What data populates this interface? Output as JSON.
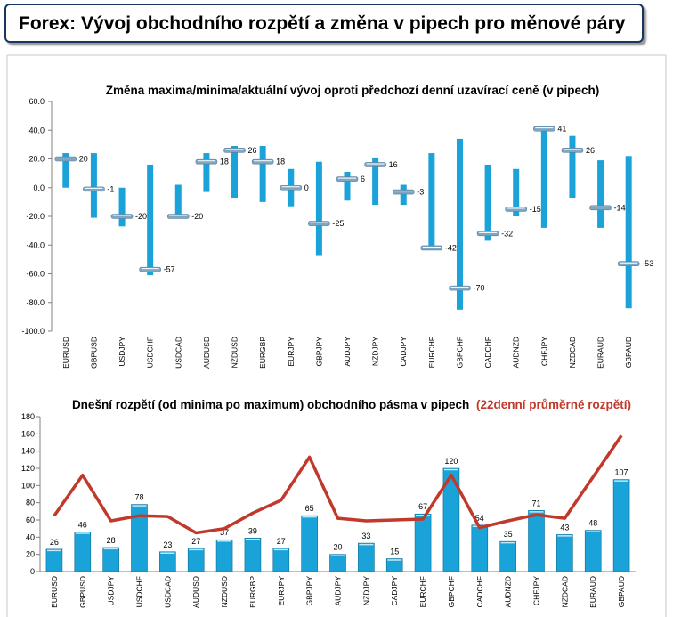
{
  "page_title": "Forex: Vývoj obchodního rozpětí a změna v pipech pro měnové páry",
  "chart_data": [
    {
      "type": "range",
      "title": "Změna maxima/minima/aktuální vývoj oproti předchozí denní uzavírací ceně (v pipech)",
      "ylim": [
        -100,
        60
      ],
      "yticks": [
        "60.0",
        "40.0",
        "20.0",
        "0.0",
        "-20.0",
        "-40.0",
        "-60.0",
        "-80.0",
        "-100.0"
      ],
      "grid": false,
      "colors": {
        "bar": "#1aa3d9",
        "marker": "#7fa6c2"
      },
      "categories": [
        "EURUSD",
        "GBPUSD",
        "USDJPY",
        "USDCHF",
        "USDCAD",
        "AUDUSD",
        "NZDUSD",
        "EURGBP",
        "EURJPY",
        "GBPJPY",
        "AUDJPY",
        "NZDJPY",
        "CADJPY",
        "EURCHF",
        "GBPCHF",
        "CADCHF",
        "AUDNZD",
        "CHFJPY",
        "NZDCAD",
        "EURAUD",
        "GBPAUD"
      ],
      "high": [
        24,
        24,
        0,
        16,
        2,
        24,
        29,
        29,
        13,
        18,
        11,
        21,
        2,
        24,
        34,
        16,
        13,
        42,
        36,
        19,
        22
      ],
      "low": [
        0,
        -21,
        -27,
        -61,
        -21,
        -3,
        -7,
        -10,
        -13,
        -47,
        -9,
        -12,
        -12,
        -43,
        -85,
        -37,
        -20,
        -28,
        -7,
        -28,
        -84
      ],
      "current": [
        20,
        -1,
        -20,
        -57,
        -20,
        18,
        26,
        18,
        0,
        -25,
        6,
        16,
        -3,
        -42,
        -70,
        -32,
        -15,
        41,
        26,
        -14,
        -53
      ],
      "labels": [
        "20",
        "-1",
        "-20",
        "-57",
        "-20",
        "18",
        "26",
        "18",
        "0",
        "-25",
        "6",
        "16",
        "-3",
        "-42",
        "-70",
        "-32",
        "-15",
        "41",
        "26",
        "-14",
        "-53"
      ]
    },
    {
      "type": "bar+line",
      "title": "Dnešní rozpětí (od minima po maximum) obchodního pásma v pipech",
      "title_suffix": "(22denní průměrné rozpětí)",
      "ylim": [
        0,
        180
      ],
      "yticks": [
        "180",
        "160",
        "140",
        "120",
        "100",
        "80",
        "60",
        "40",
        "20",
        "0"
      ],
      "grid": false,
      "colors": {
        "bar": "#1aa3d9",
        "line": "#c0392b"
      },
      "categories": [
        "EURUSD",
        "GBPUSD",
        "USDJPY",
        "USDCHF",
        "USDCAD",
        "AUDUSD",
        "NZDUSD",
        "EURGBP",
        "EURJPY",
        "GBPJPY",
        "AUDJPY",
        "NZDJPY",
        "CADJPY",
        "EURCHF",
        "GBPCHF",
        "CADCHF",
        "AUDNZD",
        "CHFJPY",
        "NZDCAD",
        "EURAUD",
        "GBPAUD"
      ],
      "series": [
        {
          "values": [
            26,
            46,
            28,
            78,
            23,
            27,
            37,
            39,
            27,
            65,
            20,
            33,
            15,
            67,
            120,
            54,
            35,
            71,
            43,
            48,
            107
          ],
          "labels": [
            "26",
            "46",
            "28",
            "78",
            "23",
            "27",
            "37",
            "39",
            "27",
            "65",
            "20",
            "33",
            "15",
            "67",
            "120",
            "54",
            "35",
            "71",
            "43",
            "48",
            "107"
          ]
        },
        {
          "values": [
            65,
            112,
            59,
            65,
            64,
            45,
            50,
            68,
            83,
            133,
            62,
            59,
            60,
            61,
            112,
            51,
            59,
            66,
            62,
            110,
            158
          ]
        }
      ]
    }
  ]
}
